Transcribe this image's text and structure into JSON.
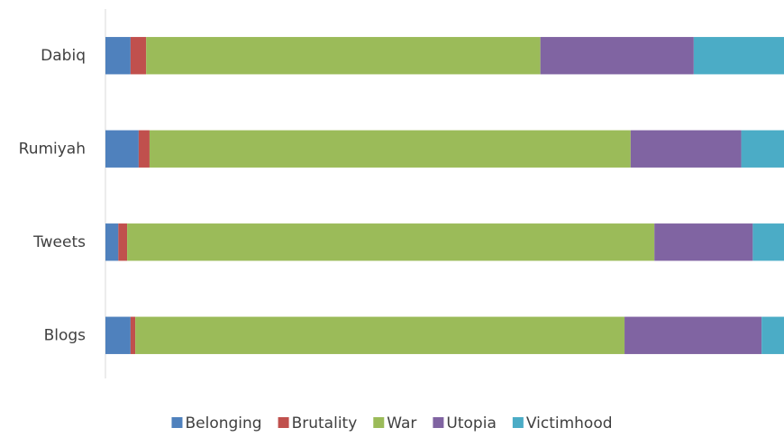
{
  "chart_data": {
    "type": "bar",
    "orientation": "horizontal",
    "stacked": true,
    "categories": [
      "Dabiq",
      "Rumiyah",
      "Tweets",
      "Blogs"
    ],
    "series": [
      {
        "name": "Belonging",
        "color": "#4f81bd",
        "values": [
          3.7,
          4.9,
          1.9,
          3.7
        ]
      },
      {
        "name": "Brutality",
        "color": "#c0504d",
        "values": [
          2.3,
          1.6,
          1.3,
          0.7
        ]
      },
      {
        "name": "War",
        "color": "#9bbb59",
        "values": [
          58.1,
          70.9,
          77.7,
          72.1
        ]
      },
      {
        "name": "Utopia",
        "color": "#8064a2",
        "values": [
          22.6,
          16.3,
          14.5,
          20.2
        ]
      },
      {
        "name": "Victimhood",
        "color": "#4bacc6",
        "values": [
          13.3,
          6.3,
          4.6,
          3.3
        ]
      }
    ],
    "xlim": [
      0,
      100
    ],
    "legend": "bottom"
  }
}
